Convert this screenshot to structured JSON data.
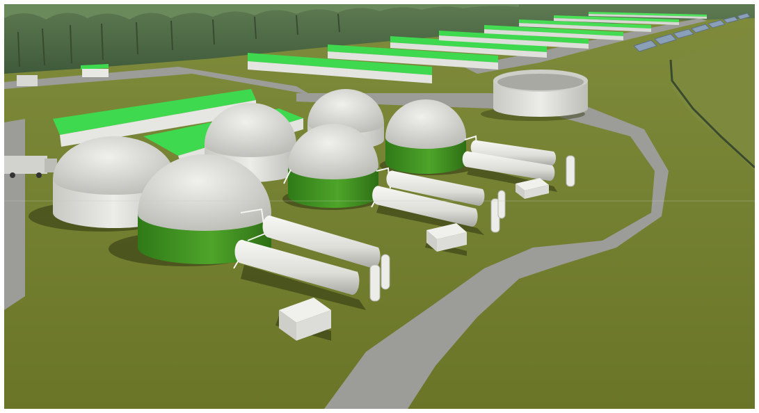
{
  "scene": {
    "colors": {
      "grass": "#6f7a2e",
      "grass_light": "#7c8a38",
      "road": "#9a9a98",
      "trees": "#4e6b45",
      "roof_green": "#3fd94f",
      "dome_white": "#dcdcd8",
      "tank_green": "#3f8f22",
      "tank_white": "#e9e9e6",
      "shadow": "#2f3512"
    },
    "icons": {
      "digester": "dome-tank-icon",
      "storage_tank": "cylinder-tank-icon",
      "barn": "livestock-barn-icon",
      "container": "container-icon"
    }
  }
}
